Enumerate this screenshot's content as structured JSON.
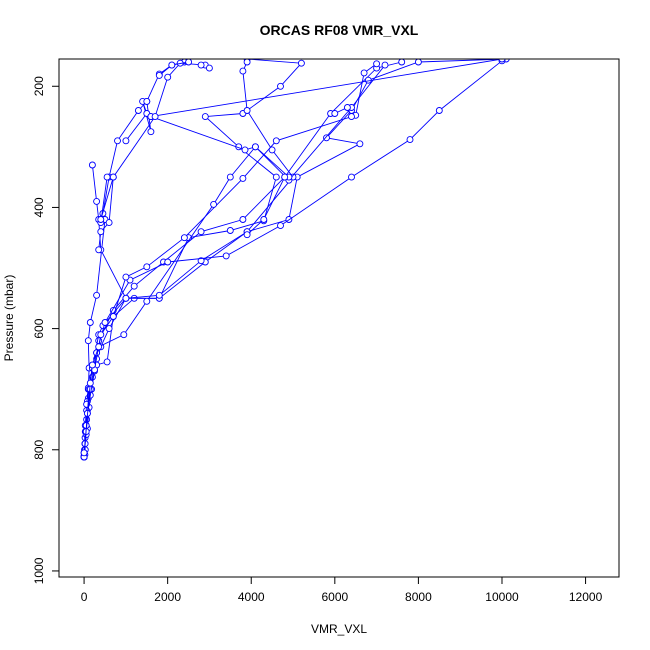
{
  "chart_data": {
    "type": "line",
    "title": "ORCAS RF08 VMR_VXL",
    "xlabel": "VMR_VXL",
    "ylabel": "Pressure (mbar)",
    "xlim": [
      -600,
      12800
    ],
    "ylim": [
      1010,
      155
    ],
    "y_reversed": true,
    "grid": false,
    "x_ticks": [
      0,
      2000,
      4000,
      6000,
      8000,
      10000,
      12000
    ],
    "x_tick_labels": [
      "0",
      "2000",
      "4000",
      "6000",
      "8000",
      "10000",
      "12000"
    ],
    "y_ticks": [
      200,
      400,
      600,
      800,
      1000
    ],
    "y_tick_labels": [
      "200",
      "400",
      "600",
      "800",
      "1000"
    ],
    "colors": {
      "series": "#0000ff",
      "axis": "#000000"
    },
    "series": [
      {
        "values": [
          [
            0,
            812
          ],
          [
            0,
            810
          ],
          [
            10,
            800
          ],
          [
            20,
            790
          ],
          [
            25,
            780
          ],
          [
            30,
            770
          ],
          [
            50,
            760
          ],
          [
            60,
            750
          ],
          [
            80,
            735
          ],
          [
            100,
            715
          ],
          [
            150,
            700
          ],
          [
            200,
            680
          ],
          [
            300,
            660
          ],
          [
            550,
            655
          ],
          [
            700,
            580
          ],
          [
            1200,
            550
          ],
          [
            1800,
            550
          ],
          [
            2500,
            450
          ],
          [
            3500,
            438
          ],
          [
            4300,
            422
          ],
          [
            4600,
            350
          ],
          [
            3700,
            300
          ],
          [
            2900,
            250
          ],
          [
            3800,
            245
          ],
          [
            4700,
            200
          ],
          [
            5200,
            162
          ],
          [
            3900,
            155
          ]
        ]
      },
      {
        "values": [
          [
            0,
            812
          ],
          [
            30,
            800
          ],
          [
            50,
            775
          ],
          [
            80,
            765
          ],
          [
            120,
            730
          ],
          [
            150,
            710
          ],
          [
            180,
            700
          ],
          [
            250,
            670
          ],
          [
            300,
            640
          ],
          [
            350,
            620
          ],
          [
            700,
            570
          ],
          [
            1200,
            530
          ],
          [
            1900,
            490
          ],
          [
            2800,
            440
          ],
          [
            3800,
            420
          ],
          [
            4800,
            350
          ],
          [
            5900,
            245
          ],
          [
            7000,
            170
          ],
          [
            7600,
            160
          ]
        ]
      },
      {
        "values": [
          [
            20,
            808
          ],
          [
            40,
            770
          ],
          [
            60,
            735
          ],
          [
            80,
            720
          ],
          [
            100,
            700
          ],
          [
            120,
            665
          ],
          [
            100,
            620
          ],
          [
            150,
            590
          ],
          [
            300,
            545
          ],
          [
            500,
            420
          ],
          [
            450,
            410
          ],
          [
            600,
            350
          ],
          [
            800,
            290
          ],
          [
            1300,
            240
          ],
          [
            1500,
            225
          ],
          [
            1800,
            180
          ],
          [
            2100,
            165
          ],
          [
            2400,
            160
          ]
        ]
      },
      {
        "values": [
          [
            0,
            805
          ],
          [
            30,
            760
          ],
          [
            60,
            725
          ],
          [
            100,
            698
          ],
          [
            200,
            665
          ],
          [
            300,
            650
          ],
          [
            400,
            630
          ],
          [
            600,
            600
          ],
          [
            1000,
            550
          ],
          [
            1800,
            550
          ],
          [
            2900,
            490
          ],
          [
            3900,
            440
          ],
          [
            4900,
            420
          ],
          [
            5100,
            350
          ],
          [
            6600,
            295
          ],
          [
            5800,
            285
          ],
          [
            6400,
            240
          ],
          [
            6800,
            190
          ],
          [
            8000,
            160
          ],
          [
            10100,
            155
          ]
        ]
      },
      {
        "values": [
          [
            0,
            812
          ],
          [
            25,
            790
          ],
          [
            50,
            760
          ],
          [
            80,
            740
          ],
          [
            120,
            700
          ],
          [
            200,
            665
          ],
          [
            350,
            610
          ],
          [
            450,
            595
          ],
          [
            1000,
            550
          ],
          [
            1800,
            545
          ],
          [
            2800,
            488
          ],
          [
            3900,
            440
          ],
          [
            5000,
            350
          ],
          [
            4500,
            305
          ],
          [
            3900,
            240
          ],
          [
            3800,
            175
          ],
          [
            3900,
            160
          ]
        ]
      },
      {
        "values": [
          [
            0,
            812
          ],
          [
            50,
            770
          ],
          [
            150,
            700
          ],
          [
            300,
            640
          ],
          [
            500,
            590
          ],
          [
            1100,
            520
          ],
          [
            2000,
            490
          ],
          [
            3400,
            480
          ],
          [
            4700,
            430
          ],
          [
            6400,
            350
          ],
          [
            7800,
            288
          ],
          [
            8500,
            240
          ],
          [
            10000,
            158
          ]
        ]
      },
      {
        "values": [
          [
            0,
            812
          ],
          [
            80,
            740
          ],
          [
            250,
            668
          ],
          [
            400,
            610
          ],
          [
            700,
            580
          ],
          [
            1000,
            515
          ],
          [
            1500,
            498
          ],
          [
            2400,
            450
          ],
          [
            3800,
            352
          ],
          [
            4600,
            290
          ],
          [
            6500,
            248
          ],
          [
            6700,
            178
          ],
          [
            7000,
            163
          ]
        ]
      },
      {
        "values": [
          [
            0,
            805
          ],
          [
            150,
            690
          ],
          [
            200,
            660
          ],
          [
            350,
            630
          ],
          [
            950,
            610
          ],
          [
            1500,
            555
          ],
          [
            3100,
            395
          ],
          [
            3500,
            350
          ],
          [
            4100,
            300
          ],
          [
            4900,
            355
          ],
          [
            6400,
            235
          ],
          [
            7200,
            165
          ]
        ]
      },
      {
        "values": [
          [
            200,
            330
          ],
          [
            300,
            390
          ],
          [
            350,
            420
          ],
          [
            400,
            470
          ],
          [
            1000,
            550
          ]
        ]
      },
      {
        "values": [
          [
            400,
            425
          ],
          [
            550,
            350
          ],
          [
            700,
            350
          ],
          [
            600,
            425
          ],
          [
            400,
            440
          ],
          [
            350,
            470
          ]
        ]
      },
      {
        "values": [
          [
            1000,
            290
          ],
          [
            1500,
            245
          ],
          [
            1400,
            225
          ],
          [
            1600,
            275
          ],
          [
            1500,
            225
          ]
        ]
      },
      {
        "values": [
          [
            1600,
            250
          ],
          [
            3850,
            305
          ],
          [
            4100,
            300
          ],
          [
            4900,
            350
          ]
        ]
      },
      {
        "values": [
          [
            1600,
            250
          ],
          [
            10000,
            155
          ]
        ]
      },
      {
        "values": [
          [
            400,
            420
          ],
          [
            700,
            350
          ],
          [
            1700,
            250
          ],
          [
            2000,
            185
          ],
          [
            2300,
            162
          ],
          [
            2900,
            165
          ],
          [
            3000,
            170
          ],
          [
            2800,
            165
          ]
        ]
      },
      {
        "values": [
          [
            1800,
            182
          ],
          [
            2100,
            165
          ],
          [
            2500,
            160
          ]
        ]
      },
      {
        "values": [
          [
            4800,
            350
          ],
          [
            4300,
            420
          ],
          [
            3900,
            445
          ]
        ]
      },
      {
        "values": [
          [
            6400,
            250
          ],
          [
            6300,
            235
          ],
          [
            6000,
            245
          ]
        ]
      }
    ]
  }
}
